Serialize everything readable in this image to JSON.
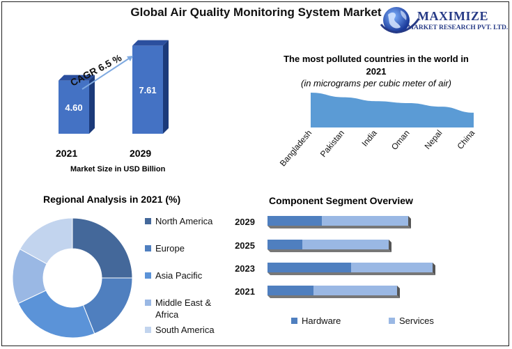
{
  "title": "Global Air Quality Monitoring System Market",
  "logo": {
    "name": "MAXIMIZE",
    "subtitle": "MARKET RESEARCH PVT. LTD."
  },
  "colors": {
    "dark_blue": "#44689a",
    "mid_blue": "#5585c2",
    "bar_blue": "#4472c4",
    "light_blue": "#9ab8e4",
    "pale_blue": "#c2d4ee",
    "area_blue": "#5b9bd5"
  },
  "chart_data": [
    {
      "type": "bar",
      "categories": [
        "2021",
        "2029"
      ],
      "values": [
        4.6,
        7.61
      ],
      "value_labels": [
        "4.60",
        "7.61"
      ],
      "xlabel": "Market Size in USD Billion",
      "annotation": "CAGR 6.5 %"
    },
    {
      "type": "area",
      "title": "The most polluted countries in the world in 2021",
      "subtitle": "(in micrograms per cubic meter of air)",
      "categories": [
        "Bangladesh",
        "Pakistan",
        "India",
        "Oman",
        "Nepal",
        "China"
      ],
      "values": [
        76.9,
        66.8,
        58.1,
        53.9,
        46.0,
        32.6
      ]
    },
    {
      "type": "pie",
      "title": "Regional Analysis in 2021 (%)",
      "labels": [
        "North America",
        "Europe",
        "Asia Pacific",
        "Middle East & Africa",
        "South America"
      ],
      "values": [
        25,
        19,
        24,
        15,
        17
      ]
    },
    {
      "type": "bar",
      "title": "Component Segment Overview",
      "categories": [
        "2029",
        "2025",
        "2023",
        "2021"
      ],
      "series": [
        {
          "name": "Hardware",
          "values": [
            78,
            50,
            120,
            66
          ]
        },
        {
          "name": "Services",
          "values": [
            124,
            124,
            117,
            120
          ]
        }
      ]
    }
  ]
}
